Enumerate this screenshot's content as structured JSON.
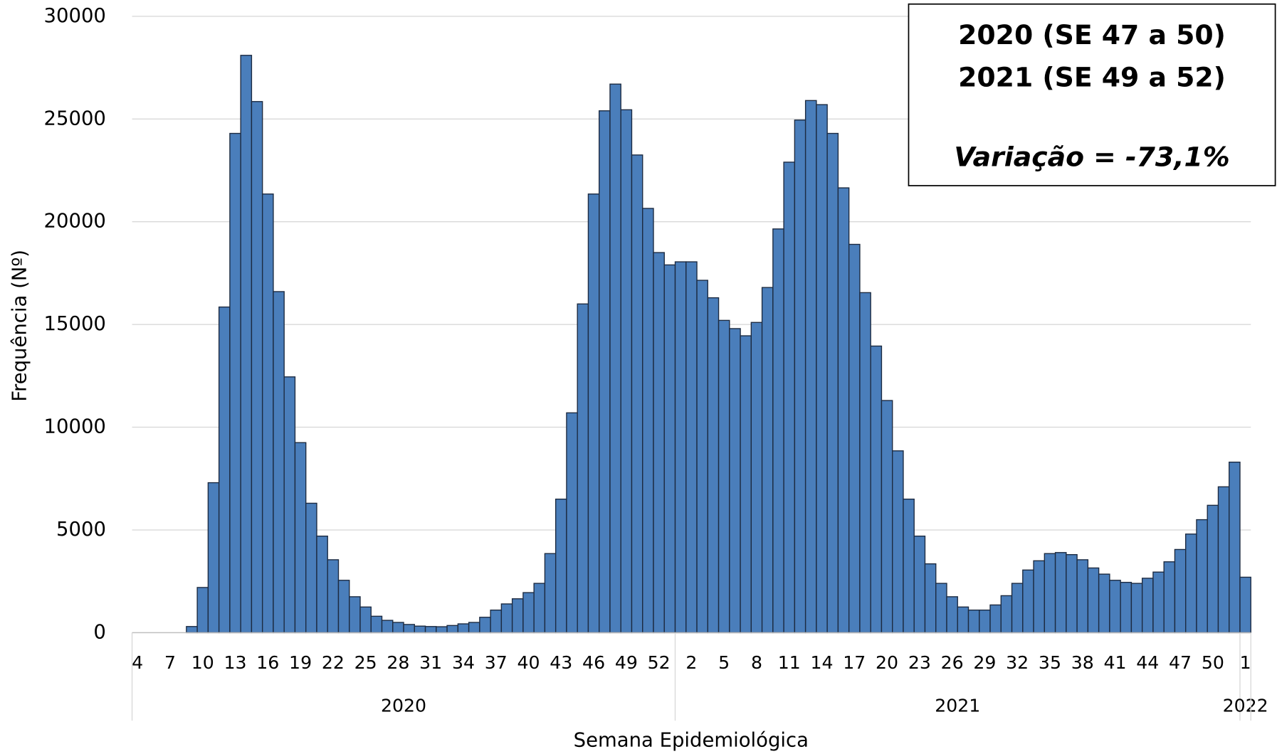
{
  "chart_data": {
    "type": "bar",
    "y_label": "Frequência (Nº)",
    "x_label": "Semana Epidemiológica",
    "annotation": [
      "2020 (SE 47 a 50)",
      "2021 (SE 49 a 52)",
      "Variação = -73,1%"
    ],
    "color": "#4a7ebb",
    "ylim": [
      0,
      30000
    ],
    "yticks": [
      0,
      5000,
      10000,
      15000,
      20000,
      25000,
      30000
    ],
    "grid": true,
    "groups": [
      {
        "label": "2020",
        "size": 50
      },
      {
        "label": "2021",
        "size": 52
      },
      {
        "label": "2022",
        "size": 1
      }
    ],
    "categories": [
      "4",
      null,
      null,
      "7",
      null,
      null,
      "10",
      null,
      null,
      "13",
      null,
      null,
      "16",
      null,
      null,
      "19",
      null,
      null,
      "22",
      null,
      null,
      "25",
      null,
      null,
      "28",
      null,
      null,
      "31",
      null,
      null,
      "34",
      null,
      null,
      "37",
      null,
      null,
      "40",
      null,
      null,
      "43",
      null,
      null,
      "46",
      null,
      null,
      "49",
      null,
      null,
      "52",
      null,
      null,
      "2",
      null,
      null,
      "5",
      null,
      null,
      "8",
      null,
      null,
      "11",
      null,
      null,
      "14",
      null,
      null,
      "17",
      null,
      null,
      "20",
      null,
      null,
      "23",
      null,
      null,
      "26",
      null,
      null,
      "29",
      null,
      null,
      "32",
      null,
      null,
      "35",
      null,
      null,
      "38",
      null,
      null,
      "41",
      null,
      null,
      "44",
      null,
      null,
      "47",
      null,
      null,
      "50",
      null,
      null,
      "1"
    ],
    "values": [
      0,
      0,
      0,
      0,
      0,
      300,
      2200,
      7300,
      15850,
      24300,
      28100,
      25850,
      21350,
      16600,
      12450,
      9250,
      6300,
      4700,
      3550,
      2550,
      1750,
      1250,
      800,
      600,
      500,
      400,
      320,
      300,
      290,
      350,
      430,
      500,
      750,
      1100,
      1400,
      1650,
      1950,
      2400,
      3850,
      6500,
      10700,
      16000,
      21350,
      25400,
      26700,
      25450,
      23250,
      20650,
      18500,
      17900,
      18050,
      18050,
      17150,
      16300,
      15200,
      14800,
      14450,
      15100,
      16800,
      19650,
      22900,
      24950,
      25900,
      25700,
      24300,
      21650,
      18900,
      16550,
      13950,
      11300,
      8850,
      6500,
      4700,
      3350,
      2400,
      1750,
      1250,
      1100,
      1100,
      1350,
      1800,
      2400,
      3050,
      3500,
      3850,
      3900,
      3800,
      3550,
      3150,
      2850,
      2550,
      2450,
      2400,
      2650,
      2950,
      3450,
      4050,
      4800,
      5500,
      6200,
      7100,
      8300,
      2700
    ]
  }
}
